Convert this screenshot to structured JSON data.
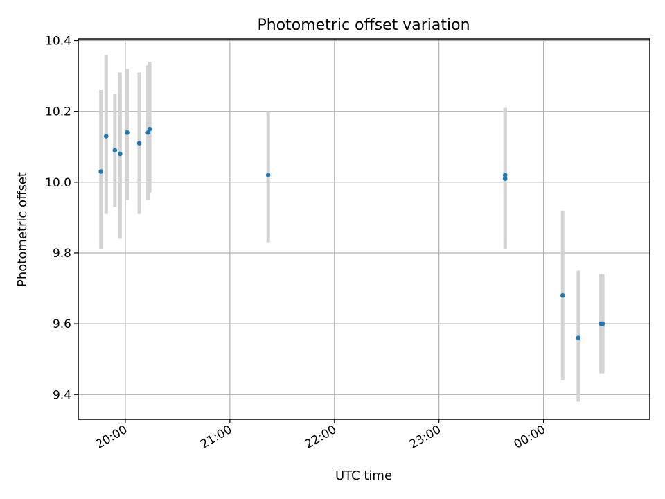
{
  "chart_data": {
    "type": "scatter",
    "title": "Photometric offset variation",
    "xlabel": "UTC time",
    "ylabel": "Photometric offset",
    "xlim": [
      "19:33",
      "01:01"
    ],
    "ylim": [
      9.33,
      10.405
    ],
    "x_ticks": [
      "20:00",
      "21:00",
      "22:00",
      "23:00",
      "00:00"
    ],
    "y_ticks": [
      9.4,
      9.6,
      9.8,
      10.0,
      10.2,
      10.4
    ],
    "grid": true,
    "marker_color": "#1f77b4",
    "errorbar_color": "#d3d3d3",
    "points": [
      {
        "x": "19:46",
        "y": 10.03,
        "ylow": 9.81,
        "yhigh": 10.26
      },
      {
        "x": "19:49",
        "y": 10.13,
        "ylow": 9.91,
        "yhigh": 10.36
      },
      {
        "x": "19:54",
        "y": 10.09,
        "ylow": 9.93,
        "yhigh": 10.25
      },
      {
        "x": "19:57",
        "y": 10.08,
        "ylow": 9.84,
        "yhigh": 10.31
      },
      {
        "x": "20:01",
        "y": 10.14,
        "ylow": 9.95,
        "yhigh": 10.32
      },
      {
        "x": "20:01",
        "y": 10.14,
        "ylow": 9.95,
        "yhigh": 10.32
      },
      {
        "x": "20:08",
        "y": 10.11,
        "ylow": 9.91,
        "yhigh": 10.31
      },
      {
        "x": "20:13",
        "y": 10.14,
        "ylow": 9.95,
        "yhigh": 10.33
      },
      {
        "x": "20:14",
        "y": 10.15,
        "ylow": 9.97,
        "yhigh": 10.34
      },
      {
        "x": "21:22",
        "y": 10.02,
        "ylow": 9.83,
        "yhigh": 10.2
      },
      {
        "x": "23:38",
        "y": 10.02,
        "ylow": 9.83,
        "yhigh": 10.21
      },
      {
        "x": "23:38",
        "y": 10.01,
        "ylow": 9.81,
        "yhigh": 10.21
      },
      {
        "x": "00:11",
        "y": 9.68,
        "ylow": 9.44,
        "yhigh": 9.92
      },
      {
        "x": "00:20",
        "y": 9.56,
        "ylow": 9.38,
        "yhigh": 9.75
      },
      {
        "x": "00:33",
        "y": 9.6,
        "ylow": 9.46,
        "yhigh": 9.74
      },
      {
        "x": "00:34",
        "y": 9.6,
        "ylow": 9.46,
        "yhigh": 9.74
      }
    ]
  }
}
